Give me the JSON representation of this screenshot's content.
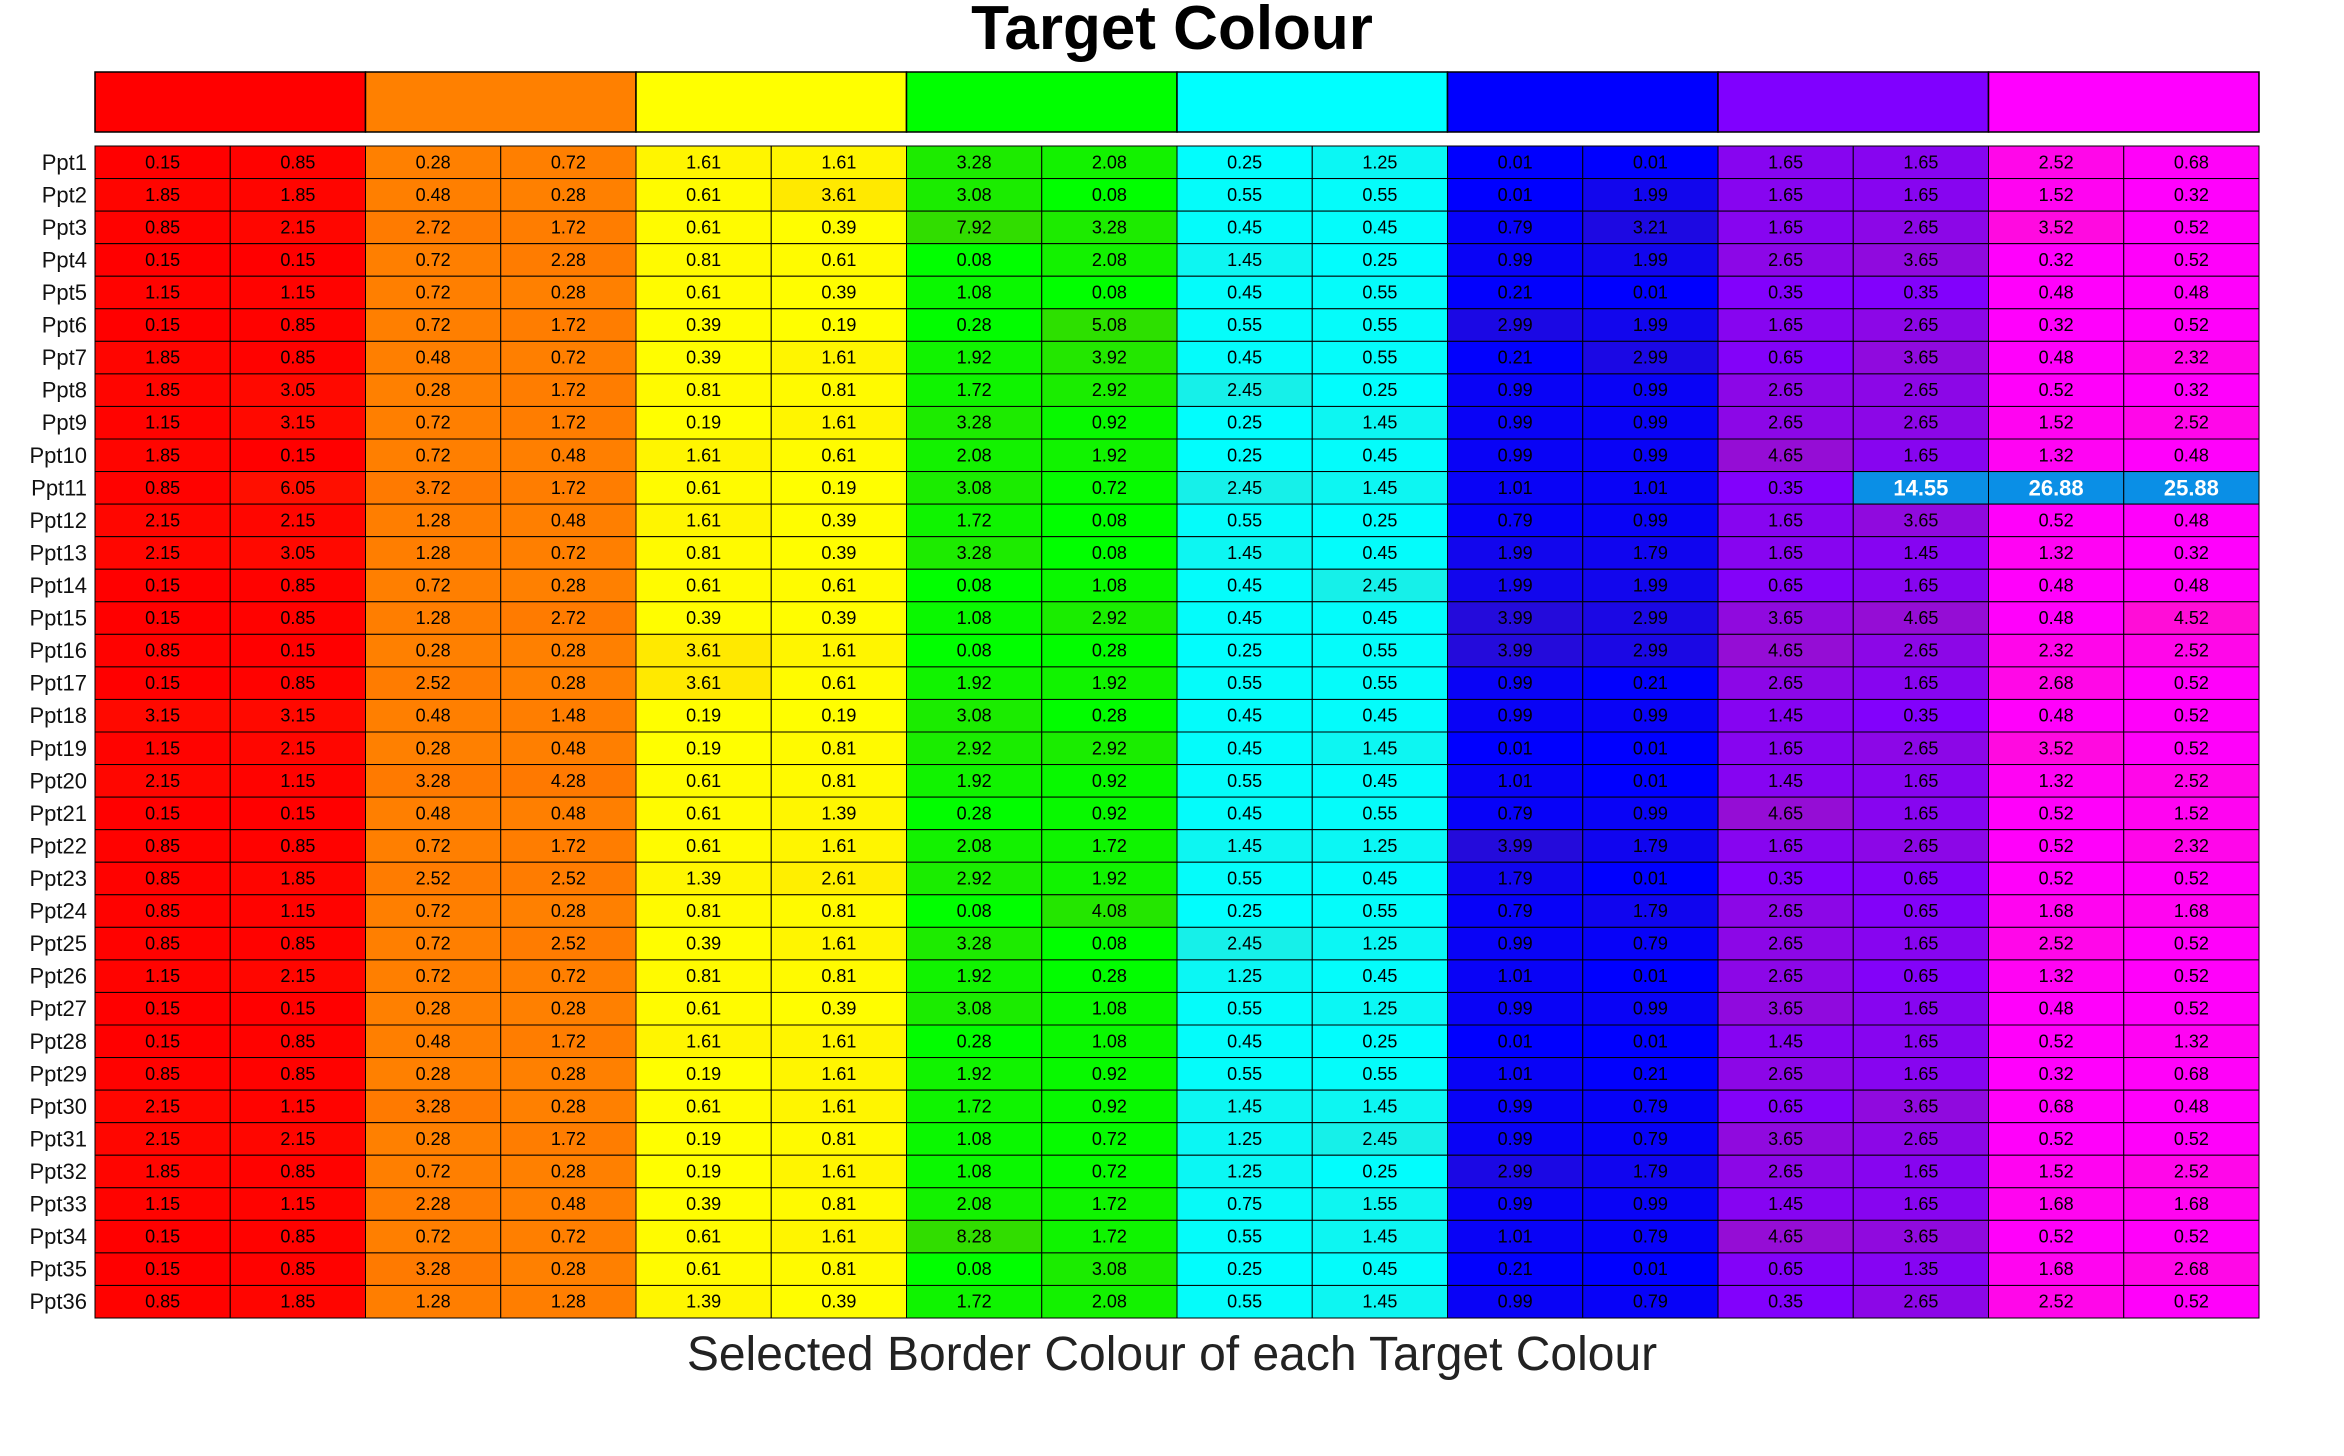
{
  "chart_data": {
    "type": "heatmap",
    "title": "Target Colour",
    "xlabel": "Selected Border Colour of each Target Colour",
    "target_colours": [
      "#ff0000",
      "#ff8000",
      "#ffff00",
      "#00ff00",
      "#00ffff",
      "#0000ff",
      "#8000ff",
      "#ff00ff"
    ],
    "rows": [
      "Ppt1",
      "Ppt2",
      "Ppt3",
      "Ppt4",
      "Ppt5",
      "Ppt6",
      "Ppt7",
      "Ppt8",
      "Ppt9",
      "Ppt10",
      "Ppt11",
      "Ppt12",
      "Ppt13",
      "Ppt14",
      "Ppt15",
      "Ppt16",
      "Ppt17",
      "Ppt18",
      "Ppt19",
      "Ppt20",
      "Ppt21",
      "Ppt22",
      "Ppt23",
      "Ppt24",
      "Ppt25",
      "Ppt26",
      "Ppt27",
      "Ppt28",
      "Ppt29",
      "Ppt30",
      "Ppt31",
      "Ppt32",
      "Ppt33",
      "Ppt34",
      "Ppt35",
      "Ppt36"
    ],
    "values": [
      [
        "0.15",
        "0.85",
        "0.28",
        "0.72",
        "1.61",
        "1.61",
        "3.28",
        "2.08",
        "0.25",
        "1.25",
        "0.01",
        "0.01",
        "1.65",
        "1.65",
        "2.52",
        "0.68"
      ],
      [
        "1.85",
        "1.85",
        "0.48",
        "0.28",
        "0.61",
        "3.61",
        "3.08",
        "0.08",
        "0.55",
        "0.55",
        "0.01",
        "1.99",
        "1.65",
        "1.65",
        "1.52",
        "0.32"
      ],
      [
        "0.85",
        "2.15",
        "2.72",
        "1.72",
        "0.61",
        "0.39",
        "7.92",
        "3.28",
        "0.45",
        "0.45",
        "0.79",
        "3.21",
        "1.65",
        "2.65",
        "3.52",
        "0.52"
      ],
      [
        "0.15",
        "0.15",
        "0.72",
        "2.28",
        "0.81",
        "0.61",
        "0.08",
        "2.08",
        "1.45",
        "0.25",
        "0.99",
        "1.99",
        "2.65",
        "3.65",
        "0.32",
        "0.52"
      ],
      [
        "1.15",
        "1.15",
        "0.72",
        "0.28",
        "0.61",
        "0.39",
        "1.08",
        "0.08",
        "0.45",
        "0.55",
        "0.21",
        "0.01",
        "0.35",
        "0.35",
        "0.48",
        "0.48"
      ],
      [
        "0.15",
        "0.85",
        "0.72",
        "1.72",
        "0.39",
        "0.19",
        "0.28",
        "5.08",
        "0.55",
        "0.55",
        "2.99",
        "1.99",
        "1.65",
        "2.65",
        "0.32",
        "0.52"
      ],
      [
        "1.85",
        "0.85",
        "0.48",
        "0.72",
        "0.39",
        "1.61",
        "1.92",
        "3.92",
        "0.45",
        "0.55",
        "0.21",
        "2.99",
        "0.65",
        "3.65",
        "0.48",
        "2.32"
      ],
      [
        "1.85",
        "3.05",
        "0.28",
        "1.72",
        "0.81",
        "0.81",
        "1.72",
        "2.92",
        "2.45",
        "0.25",
        "0.99",
        "0.99",
        "2.65",
        "2.65",
        "0.52",
        "0.32"
      ],
      [
        "1.15",
        "3.15",
        "0.72",
        "1.72",
        "0.19",
        "1.61",
        "3.28",
        "0.92",
        "0.25",
        "1.45",
        "0.99",
        "0.99",
        "2.65",
        "2.65",
        "1.52",
        "2.52"
      ],
      [
        "1.85",
        "0.15",
        "0.72",
        "0.48",
        "1.61",
        "0.61",
        "2.08",
        "1.92",
        "0.25",
        "0.45",
        "0.99",
        "0.99",
        "4.65",
        "1.65",
        "1.32",
        "0.48"
      ],
      [
        "0.85",
        "6.05",
        "3.72",
        "1.72",
        "0.61",
        "0.19",
        "3.08",
        "0.72",
        "2.45",
        "1.45",
        "1.01",
        "1.01",
        "0.35",
        "14.55",
        "26.88",
        "25.88"
      ],
      [
        "2.15",
        "2.15",
        "1.28",
        "0.48",
        "1.61",
        "0.39",
        "1.72",
        "0.08",
        "0.55",
        "0.25",
        "0.79",
        "0.99",
        "1.65",
        "3.65",
        "0.52",
        "0.48"
      ],
      [
        "2.15",
        "3.05",
        "1.28",
        "0.72",
        "0.81",
        "0.39",
        "3.28",
        "0.08",
        "1.45",
        "0.45",
        "1.99",
        "1.79",
        "1.65",
        "1.45",
        "1.32",
        "0.32"
      ],
      [
        "0.15",
        "0.85",
        "0.72",
        "0.28",
        "0.61",
        "0.61",
        "0.08",
        "1.08",
        "0.45",
        "2.45",
        "1.99",
        "1.99",
        "0.65",
        "1.65",
        "0.48",
        "0.48"
      ],
      [
        "0.15",
        "0.85",
        "1.28",
        "2.72",
        "0.39",
        "0.39",
        "1.08",
        "2.92",
        "0.45",
        "0.45",
        "3.99",
        "2.99",
        "3.65",
        "4.65",
        "0.48",
        "4.52"
      ],
      [
        "0.85",
        "0.15",
        "0.28",
        "0.28",
        "3.61",
        "1.61",
        "0.08",
        "0.28",
        "0.25",
        "0.55",
        "3.99",
        "2.99",
        "4.65",
        "2.65",
        "2.32",
        "2.52"
      ],
      [
        "0.15",
        "0.85",
        "2.52",
        "0.28",
        "3.61",
        "0.61",
        "1.92",
        "1.92",
        "0.55",
        "0.55",
        "0.99",
        "0.21",
        "2.65",
        "1.65",
        "2.68",
        "0.52"
      ],
      [
        "3.15",
        "3.15",
        "0.48",
        "1.48",
        "0.19",
        "0.19",
        "3.08",
        "0.28",
        "0.45",
        "0.45",
        "0.99",
        "0.99",
        "1.45",
        "0.35",
        "0.48",
        "0.52"
      ],
      [
        "1.15",
        "2.15",
        "0.28",
        "0.48",
        "0.19",
        "0.81",
        "2.92",
        "2.92",
        "0.45",
        "1.45",
        "0.01",
        "0.01",
        "1.65",
        "2.65",
        "3.52",
        "0.52"
      ],
      [
        "2.15",
        "1.15",
        "3.28",
        "4.28",
        "0.61",
        "0.81",
        "1.92",
        "0.92",
        "0.55",
        "0.45",
        "1.01",
        "0.01",
        "1.45",
        "1.65",
        "1.32",
        "2.52"
      ],
      [
        "0.15",
        "0.15",
        "0.48",
        "0.48",
        "0.61",
        "1.39",
        "0.28",
        "0.92",
        "0.45",
        "0.55",
        "0.79",
        "0.99",
        "4.65",
        "1.65",
        "0.52",
        "1.52"
      ],
      [
        "0.85",
        "0.85",
        "0.72",
        "1.72",
        "0.61",
        "1.61",
        "2.08",
        "1.72",
        "1.45",
        "1.25",
        "3.99",
        "1.79",
        "1.65",
        "2.65",
        "0.52",
        "2.32"
      ],
      [
        "0.85",
        "1.85",
        "2.52",
        "2.52",
        "1.39",
        "2.61",
        "2.92",
        "1.92",
        "0.55",
        "0.45",
        "1.79",
        "0.01",
        "0.35",
        "0.65",
        "0.52",
        "0.52"
      ],
      [
        "0.85",
        "1.15",
        "0.72",
        "0.28",
        "0.81",
        "0.81",
        "0.08",
        "4.08",
        "0.25",
        "0.55",
        "0.79",
        "1.79",
        "2.65",
        "0.65",
        "1.68",
        "1.68"
      ],
      [
        "0.85",
        "0.85",
        "0.72",
        "2.52",
        "0.39",
        "1.61",
        "3.28",
        "0.08",
        "2.45",
        "1.25",
        "0.99",
        "0.79",
        "2.65",
        "1.65",
        "2.52",
        "0.52"
      ],
      [
        "1.15",
        "2.15",
        "0.72",
        "0.72",
        "0.81",
        "0.81",
        "1.92",
        "0.28",
        "1.25",
        "0.45",
        "1.01",
        "0.01",
        "2.65",
        "0.65",
        "1.32",
        "0.52"
      ],
      [
        "0.15",
        "0.15",
        "0.28",
        "0.28",
        "0.61",
        "0.39",
        "3.08",
        "1.08",
        "0.55",
        "1.25",
        "0.99",
        "0.99",
        "3.65",
        "1.65",
        "0.48",
        "0.52"
      ],
      [
        "0.15",
        "0.85",
        "0.48",
        "1.72",
        "1.61",
        "1.61",
        "0.28",
        "1.08",
        "0.45",
        "0.25",
        "0.01",
        "0.01",
        "1.45",
        "1.65",
        "0.52",
        "1.32"
      ],
      [
        "0.85",
        "0.85",
        "0.28",
        "0.28",
        "0.19",
        "1.61",
        "1.92",
        "0.92",
        "0.55",
        "0.55",
        "1.01",
        "0.21",
        "2.65",
        "1.65",
        "0.32",
        "0.68"
      ],
      [
        "2.15",
        "1.15",
        "3.28",
        "0.28",
        "0.61",
        "1.61",
        "1.72",
        "0.92",
        "1.45",
        "1.45",
        "0.99",
        "0.79",
        "0.65",
        "3.65",
        "0.68",
        "0.48"
      ],
      [
        "2.15",
        "2.15",
        "0.28",
        "1.72",
        "0.19",
        "0.81",
        "1.08",
        "0.72",
        "1.25",
        "2.45",
        "0.99",
        "0.79",
        "3.65",
        "2.65",
        "0.52",
        "0.52"
      ],
      [
        "1.85",
        "0.85",
        "0.72",
        "0.28",
        "0.19",
        "1.61",
        "1.08",
        "0.72",
        "1.25",
        "0.25",
        "2.99",
        "1.79",
        "2.65",
        "1.65",
        "1.52",
        "2.52"
      ],
      [
        "1.15",
        "1.15",
        "2.28",
        "0.48",
        "0.39",
        "0.81",
        "2.08",
        "1.72",
        "0.75",
        "1.55",
        "0.99",
        "0.99",
        "1.45",
        "1.65",
        "1.68",
        "1.68"
      ],
      [
        "0.15",
        "0.85",
        "0.72",
        "0.72",
        "0.61",
        "1.61",
        "8.28",
        "1.72",
        "0.55",
        "1.45",
        "1.01",
        "0.79",
        "4.65",
        "3.65",
        "0.52",
        "0.52"
      ],
      [
        "0.15",
        "0.85",
        "3.28",
        "0.28",
        "0.61",
        "0.81",
        "0.08",
        "3.08",
        "0.25",
        "0.45",
        "0.21",
        "0.01",
        "0.65",
        "1.35",
        "1.68",
        "2.68"
      ],
      [
        "0.85",
        "1.85",
        "1.28",
        "1.28",
        "1.39",
        "0.39",
        "1.72",
        "2.08",
        "0.55",
        "1.45",
        "0.99",
        "0.79",
        "0.35",
        "2.65",
        "2.52",
        "0.52"
      ]
    ],
    "highlight_colour": "#0a8fe6"
  }
}
